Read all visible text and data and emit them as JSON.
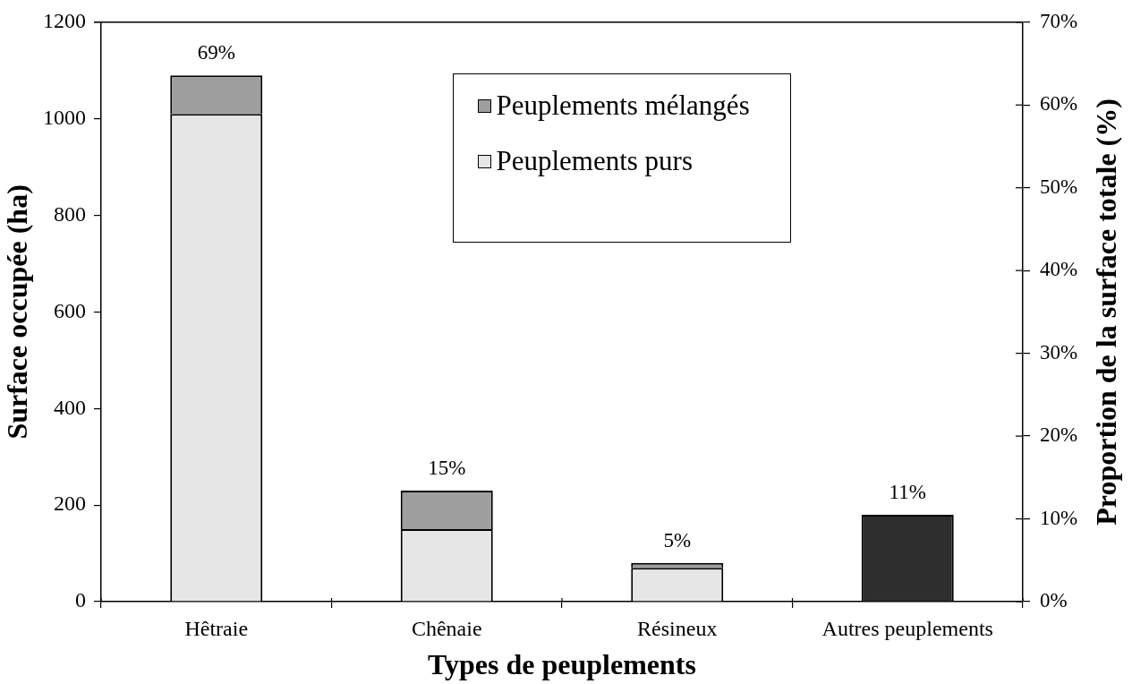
{
  "chart_data": {
    "type": "bar",
    "stacked": true,
    "categories": [
      "Hêtraie",
      "Chênaie",
      "Résineux",
      "Autres peuplements"
    ],
    "series": [
      {
        "name": "Peuplements purs",
        "color": "#e6e6e6",
        "values": [
          1010,
          150,
          70,
          null
        ]
      },
      {
        "name": "Peuplements mélangés",
        "color": "#9e9e9e",
        "values": [
          80,
          80,
          10,
          null
        ]
      },
      {
        "color": "#2e2e2e",
        "values": [
          null,
          null,
          null,
          180
        ]
      }
    ],
    "xlabel": "Types de peuplements",
    "ylabel": "Surface occupée (ha)",
    "y2label": "Proportion de la surface totale (%)",
    "ylim": [
      0,
      1200
    ],
    "yticks": [
      0,
      200,
      400,
      600,
      800,
      1000,
      1200
    ],
    "y2lim": [
      0,
      70
    ],
    "y2ticks": [
      {
        "value": 0,
        "label": "0%"
      },
      {
        "value": 10,
        "label": "10%"
      },
      {
        "value": 20,
        "label": "20%"
      },
      {
        "value": 30,
        "label": "30%"
      },
      {
        "value": 40,
        "label": "40%"
      },
      {
        "value": 50,
        "label": "50%"
      },
      {
        "value": 60,
        "label": "60%"
      },
      {
        "value": 70,
        "label": "70%"
      }
    ],
    "annotations": [
      {
        "text": "69%",
        "x": "Hêtraie",
        "y": 1090
      },
      {
        "text": "15%",
        "x": "Chênaie",
        "y": 230
      },
      {
        "text": "5%",
        "x": "Résineux",
        "y": 80
      },
      {
        "text": "11%",
        "x": "Autres peuplements",
        "y": 180
      }
    ],
    "legend": "top"
  }
}
